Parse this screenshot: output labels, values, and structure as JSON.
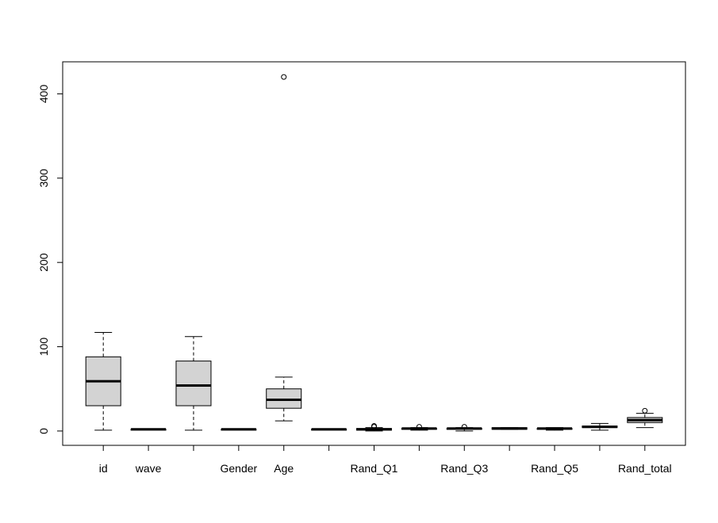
{
  "chart_data": {
    "type": "boxplot",
    "title": "",
    "xlabel": "",
    "ylabel": "",
    "ylim": [
      -17,
      438
    ],
    "y_ticks": [
      0,
      100,
      200,
      300,
      400
    ],
    "grid": false,
    "box_fill": "#d3d3d3",
    "categories": [
      "id",
      "wave",
      "",
      "Gender",
      "Age",
      "",
      "Rand_Q1",
      "",
      "Rand_Q3",
      "",
      "Rand_Q5",
      "",
      "Rand_total"
    ],
    "boxes": [
      {
        "name": "id",
        "min": 1,
        "q1": 30,
        "median": 59,
        "q3": 88,
        "max": 117,
        "outliers": []
      },
      {
        "name": "wave",
        "min": 2,
        "q1": 2,
        "median": 2,
        "q3": 2,
        "max": 2,
        "outliers": []
      },
      {
        "name": "",
        "min": 1,
        "q1": 30,
        "median": 54,
        "q3": 83,
        "max": 112,
        "outliers": []
      },
      {
        "name": "Gender",
        "min": 2,
        "q1": 2,
        "median": 2,
        "q3": 2,
        "max": 2,
        "outliers": []
      },
      {
        "name": "Age",
        "min": 12,
        "q1": 27,
        "median": 37,
        "q3": 50,
        "max": 64,
        "outliers": [
          420
        ]
      },
      {
        "name": "",
        "min": 2,
        "q1": 2,
        "median": 2,
        "q3": 2,
        "max": 2,
        "outliers": []
      },
      {
        "name": "Rand_Q1",
        "min": 0,
        "q1": 1,
        "median": 2,
        "q3": 3,
        "max": 4,
        "outliers": [
          5,
          6
        ]
      },
      {
        "name": "",
        "min": 1,
        "q1": 2,
        "median": 3,
        "q3": 3,
        "max": 4,
        "outliers": [
          5
        ]
      },
      {
        "name": "Rand_Q3",
        "min": 0,
        "q1": 2,
        "median": 3,
        "q3": 3,
        "max": 4,
        "outliers": [
          5
        ]
      },
      {
        "name": "",
        "min": 2,
        "q1": 2,
        "median": 3,
        "q3": 4,
        "max": 4,
        "outliers": []
      },
      {
        "name": "Rand_Q5",
        "min": 1,
        "q1": 2,
        "median": 3,
        "q3": 3,
        "max": 4,
        "outliers": []
      },
      {
        "name": "",
        "min": 1,
        "q1": 4,
        "median": 5,
        "q3": 6,
        "max": 9,
        "outliers": []
      },
      {
        "name": "Rand_total",
        "min": 4,
        "q1": 10,
        "median": 13,
        "q3": 16,
        "max": 21,
        "outliers": [
          24
        ]
      }
    ]
  }
}
